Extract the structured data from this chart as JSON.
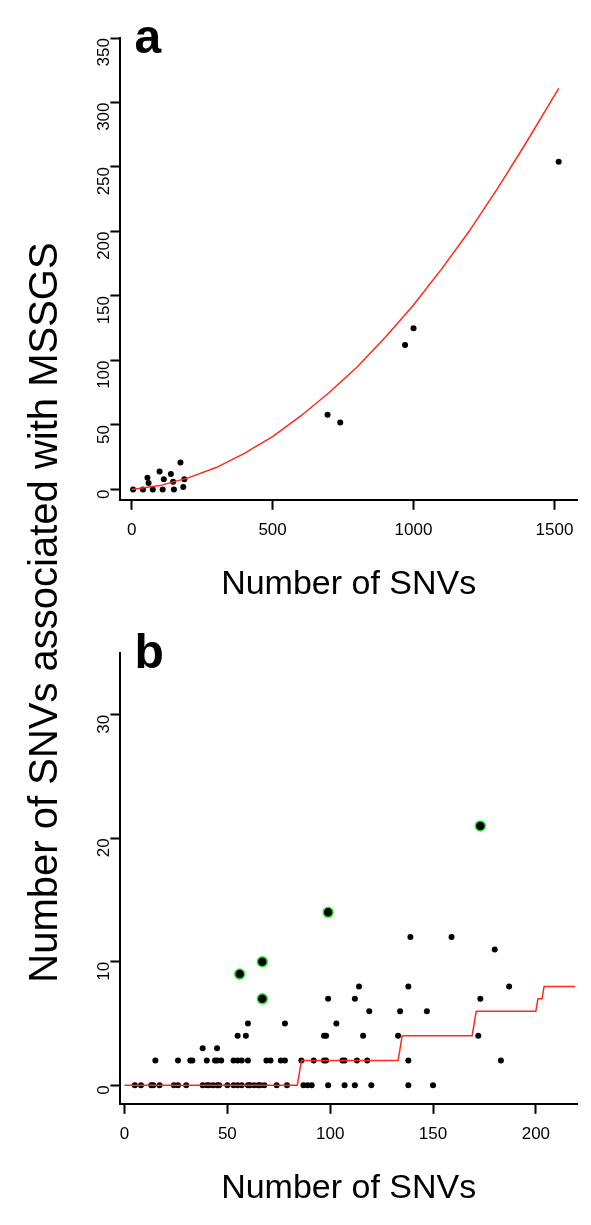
{
  "chart_data": [
    {
      "type": "scatter",
      "title": "a",
      "xlabel": "Number of SNVs",
      "ylabel": "Number of SNVs associated with MSSGS",
      "xlim": [
        -40,
        1580
      ],
      "ylim": [
        -8,
        350
      ],
      "xticks": [
        0,
        500,
        1000,
        1500
      ],
      "yticks": [
        0,
        50,
        100,
        150,
        200,
        250,
        300,
        350
      ],
      "grid": false,
      "legend": false,
      "series": [
        {
          "type": "scatter",
          "marker": "circle",
          "color": "#000000",
          "x": [
            5,
            40,
            75,
            110,
            150,
            183,
            60,
            99,
            56,
            173,
            139,
            114,
            187,
            147,
            695,
            740,
            970,
            1000,
            1515
          ],
          "values": [
            0,
            0,
            0,
            0,
            0,
            2,
            5,
            14,
            9,
            21,
            12,
            8,
            8,
            6,
            58,
            52,
            112,
            125,
            254
          ]
        },
        {
          "type": "line",
          "marker": "none",
          "color": "#ff2a1a",
          "x": [
            0,
            100,
            200,
            300,
            400,
            500,
            600,
            700,
            800,
            900,
            1000,
            1100,
            1200,
            1300,
            1400,
            1515
          ],
          "values": [
            0,
            3,
            9,
            17,
            28,
            41,
            57,
            75,
            95,
            118,
            143,
            171,
            201,
            234,
            269,
            311
          ]
        }
      ]
    },
    {
      "type": "scatter",
      "title": "b",
      "xlabel": "Number of SNVs",
      "xlim": [
        -2,
        220
      ],
      "ylim": [
        -1.5,
        35
      ],
      "xticks": [
        0,
        50,
        100,
        150,
        200
      ],
      "yticks": [
        0,
        10,
        20,
        30
      ],
      "grid": false,
      "legend": false,
      "series": [
        {
          "type": "scatter",
          "marker": "circle",
          "color": "#000000",
          "x": [
            5,
            8,
            13,
            14,
            17,
            24,
            26,
            30,
            38,
            40,
            41,
            43,
            45,
            46,
            50,
            53,
            55,
            57,
            60,
            61,
            63,
            65,
            66,
            68,
            74,
            79,
            87,
            89,
            91,
            99,
            107,
            112,
            120,
            138,
            150,
            15,
            26,
            32,
            33,
            40,
            44,
            45,
            47,
            53,
            55,
            57,
            60,
            69,
            71,
            76,
            78,
            86,
            92,
            97,
            98,
            106,
            107,
            113,
            118,
            138,
            183,
            38,
            45,
            55,
            59,
            97,
            98,
            116,
            133,
            172,
            60,
            78,
            103,
            119,
            134,
            147,
            99,
            112,
            173,
            114,
            138,
            187,
            180,
            139,
            159
          ],
          "values": [
            0,
            0,
            0,
            0,
            0,
            0,
            0,
            0,
            0,
            0,
            0,
            0,
            0,
            0,
            0,
            0,
            0,
            0,
            0,
            0,
            0,
            0,
            0,
            0,
            0,
            0,
            0,
            0,
            0,
            0,
            0,
            0,
            0,
            0,
            0,
            2,
            2,
            2,
            2,
            2,
            2,
            2,
            2,
            2,
            2,
            2,
            2,
            2,
            2,
            2,
            2,
            2,
            2,
            2,
            2,
            2,
            2,
            2,
            2,
            2,
            2,
            3,
            3,
            4,
            4,
            4,
            4,
            4,
            4,
            4,
            5,
            5,
            5,
            6,
            6,
            6,
            7,
            7,
            7,
            8,
            8,
            8,
            11,
            12,
            12
          ]
        },
        {
          "type": "scatter",
          "marker": "circle",
          "color": "#33ee33",
          "x": [
            56,
            67,
            67,
            99,
            173
          ],
          "values": [
            9,
            10,
            7,
            14,
            21
          ]
        },
        {
          "type": "line",
          "marker": "none",
          "color": "#ff2a1a",
          "x": [
            0,
            84,
            86,
            133,
            135,
            169,
            171,
            200,
            201,
            203,
            204,
            219
          ],
          "values": [
            0,
            0,
            2,
            2,
            4,
            4,
            6,
            6,
            7,
            7,
            8,
            8
          ]
        }
      ]
    }
  ]
}
